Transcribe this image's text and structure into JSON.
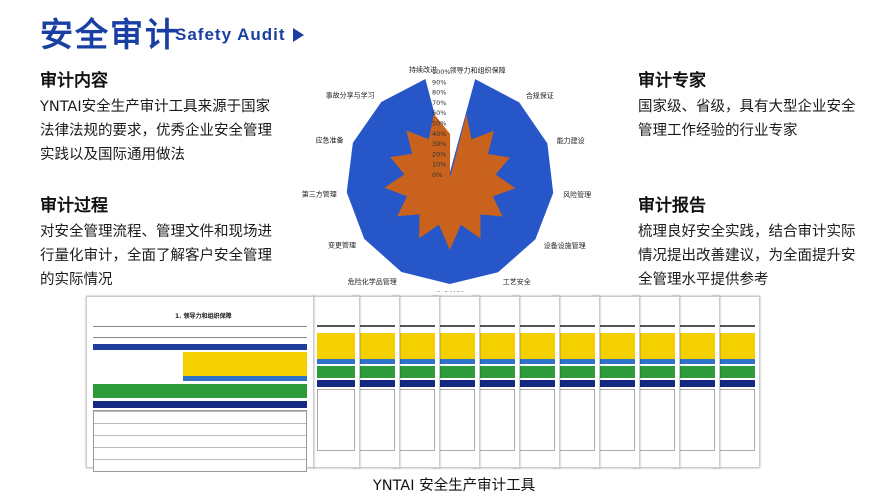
{
  "header": {
    "title_cn": "安全审计",
    "title_en": "Safety Audit",
    "arrow_icon": "play-arrow-icon"
  },
  "sections": {
    "content": {
      "heading": "审计内容",
      "body": "YNTAI安全生产审计工具来源于国家法律法规的要求，优秀企业安全管理实践以及国际通用做法"
    },
    "process": {
      "heading": "审计过程",
      "body": "对安全管理流程、管理文件和现场进行量化审计，全面了解客户安全管理的实际情况"
    },
    "experts": {
      "heading": "审计专家",
      "body": "国家级、省级，具有大型企业安全管理工作经验的行业专家"
    },
    "report": {
      "heading": "审计报告",
      "body": "梳理良好安全实践，结合审计实际情况提出改善建议，为全面提升安全管理水平提供参考"
    }
  },
  "radar": {
    "percent_ticks": [
      "100%",
      "90%",
      "80%",
      "70%",
      "60%",
      "50%",
      "40%",
      "30%",
      "20%",
      "10%",
      "0%"
    ],
    "axes": [
      "领导力和组织保障",
      "合规保证",
      "能力建设",
      "风险管理",
      "设备设施管理",
      "工艺安全",
      "作业控制",
      "危险化学品管理",
      "变更管理",
      "第三方管理",
      "应急准备",
      "事故分享与学习",
      "持续改进"
    ],
    "colors": {
      "outer": "#2756c8",
      "inner": "#c8621c"
    }
  },
  "document_preview": {
    "sheet_title": "1. 领导力和组织保障",
    "sheet_count": 12
  },
  "caption": "YNTAI 安全生产审计工具"
}
